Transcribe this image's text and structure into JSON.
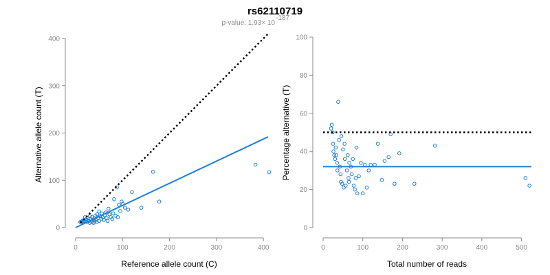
{
  "figure": {
    "title": "rs62110719",
    "subtitle_prefix": "p-value: 1.93× 10",
    "subtitle_exponent": "-187"
  },
  "colors": {
    "accent": "#1e7fd8",
    "points": "#1e7fd8",
    "reference_line": "#000000",
    "axis": "#8a8a8a"
  },
  "chart_data": [
    {
      "type": "scatter",
      "title": "",
      "xlabel": "Reference allele count (C)",
      "ylabel": "Alternative allele count (T)",
      "xlim": [
        0,
        410
      ],
      "ylim": [
        0,
        400
      ],
      "xticks": [
        0,
        100,
        200,
        300,
        400
      ],
      "yticks": [
        0,
        100,
        200,
        300,
        400
      ],
      "reference_line": {
        "style": "dotted",
        "from": [
          10,
          10
        ],
        "to": [
          410,
          410
        ]
      },
      "fit_line": {
        "from": [
          0,
          0
        ],
        "to": [
          410,
          192
        ]
      },
      "points": [
        [
          10,
          12
        ],
        [
          12,
          12
        ],
        [
          14,
          13
        ],
        [
          15,
          15
        ],
        [
          16,
          12
        ],
        [
          18,
          14
        ],
        [
          20,
          22
        ],
        [
          22,
          18
        ],
        [
          24,
          12
        ],
        [
          25,
          16
        ],
        [
          26,
          20
        ],
        [
          28,
          14
        ],
        [
          30,
          24
        ],
        [
          30,
          10
        ],
        [
          32,
          18
        ],
        [
          34,
          12
        ],
        [
          35,
          22
        ],
        [
          36,
          15
        ],
        [
          38,
          10
        ],
        [
          40,
          20
        ],
        [
          40,
          13
        ],
        [
          42,
          25
        ],
        [
          44,
          16
        ],
        [
          45,
          12
        ],
        [
          46,
          28
        ],
        [
          48,
          20
        ],
        [
          50,
          14
        ],
        [
          50,
          34
        ],
        [
          52,
          24
        ],
        [
          55,
          18
        ],
        [
          56,
          30
        ],
        [
          58,
          22
        ],
        [
          60,
          16
        ],
        [
          62,
          26
        ],
        [
          65,
          32
        ],
        [
          66,
          20
        ],
        [
          68,
          14
        ],
        [
          70,
          40
        ],
        [
          72,
          28
        ],
        [
          75,
          22
        ],
        [
          78,
          18
        ],
        [
          80,
          30
        ],
        [
          82,
          60
        ],
        [
          85,
          25
        ],
        [
          88,
          85
        ],
        [
          90,
          22
        ],
        [
          92,
          48
        ],
        [
          95,
          35
        ],
        [
          98,
          55
        ],
        [
          100,
          50
        ],
        [
          105,
          42
        ],
        [
          112,
          38
        ],
        [
          120,
          75
        ],
        [
          140,
          42
        ],
        [
          165,
          118
        ],
        [
          178,
          55
        ],
        [
          383,
          133
        ],
        [
          412,
          117
        ]
      ]
    },
    {
      "type": "scatter",
      "title": "",
      "xlabel": "Total number of reads",
      "ylabel": "Percentage alternative (T)",
      "xlim": [
        0,
        525
      ],
      "ylim": [
        0,
        100
      ],
      "xticks": [
        0,
        100,
        200,
        300,
        400,
        500
      ],
      "yticks": [
        0,
        20,
        40,
        60,
        80,
        100
      ],
      "reference_line": {
        "style": "dotted",
        "y": 50
      },
      "fit_line": {
        "y": 32
      },
      "points": [
        [
          20,
          52
        ],
        [
          22,
          54
        ],
        [
          24,
          50
        ],
        [
          25,
          44
        ],
        [
          26,
          40
        ],
        [
          28,
          38
        ],
        [
          30,
          36
        ],
        [
          32,
          42
        ],
        [
          33,
          38
        ],
        [
          35,
          34
        ],
        [
          36,
          30
        ],
        [
          38,
          66
        ],
        [
          40,
          46
        ],
        [
          42,
          32
        ],
        [
          44,
          28
        ],
        [
          45,
          24
        ],
        [
          46,
          48
        ],
        [
          48,
          23
        ],
        [
          50,
          41
        ],
        [
          52,
          21
        ],
        [
          54,
          44
        ],
        [
          55,
          36
        ],
        [
          57,
          22
        ],
        [
          60,
          30
        ],
        [
          62,
          38
        ],
        [
          64,
          26
        ],
        [
          65,
          24
        ],
        [
          66,
          34
        ],
        [
          70,
          32
        ],
        [
          72,
          28
        ],
        [
          75,
          36
        ],
        [
          77,
          22
        ],
        [
          80,
          20
        ],
        [
          82,
          26
        ],
        [
          84,
          42
        ],
        [
          86,
          18
        ],
        [
          90,
          27
        ],
        [
          95,
          34
        ],
        [
          100,
          18
        ],
        [
          105,
          33
        ],
        [
          110,
          21
        ],
        [
          115,
          30
        ],
        [
          120,
          33
        ],
        [
          130,
          33
        ],
        [
          138,
          44
        ],
        [
          148,
          25
        ],
        [
          155,
          35
        ],
        [
          165,
          37
        ],
        [
          170,
          49
        ],
        [
          180,
          23
        ],
        [
          192,
          39
        ],
        [
          230,
          23
        ],
        [
          282,
          43
        ],
        [
          510,
          26
        ],
        [
          520,
          22
        ]
      ]
    }
  ]
}
